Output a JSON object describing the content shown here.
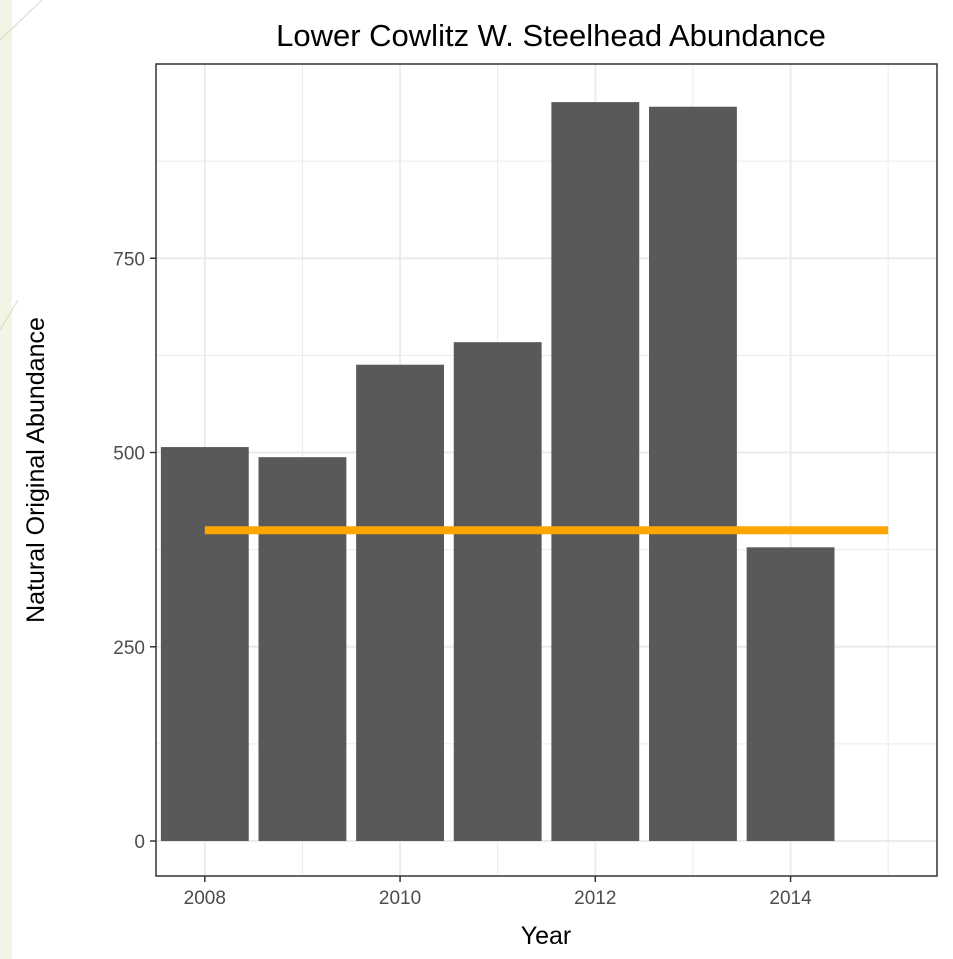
{
  "chart_data": {
    "type": "bar",
    "title": "Lower Cowlitz W. Steelhead Abundance",
    "xlabel": "Year",
    "ylabel": "Natural Original Abundance",
    "categories": [
      2008,
      2009,
      2010,
      2011,
      2012,
      2013,
      2014
    ],
    "values": [
      507,
      494,
      613,
      642,
      951,
      945,
      378
    ],
    "x_ticks": [
      "2008",
      "2010",
      "2012",
      "2014"
    ],
    "y_ticks": [
      "0",
      "250",
      "500",
      "750"
    ],
    "xlim": [
      2007.5,
      2015.5
    ],
    "ylim": [
      -45,
      1000
    ],
    "reference_line": {
      "y": 400,
      "x_start": 2008,
      "x_end": 2015
    },
    "grid": true,
    "colors": {
      "bar": "#595959",
      "reference_line": "#FFA500",
      "grid": "#ebebeb",
      "panel_border": "#333333"
    }
  }
}
